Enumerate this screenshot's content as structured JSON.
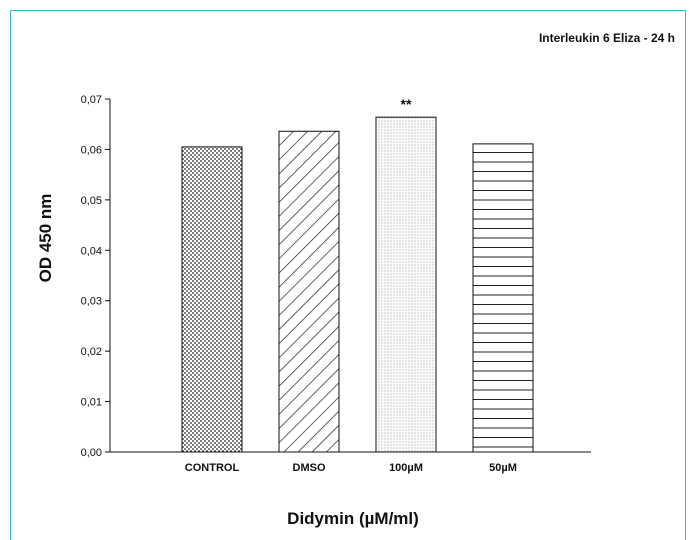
{
  "chart_data": {
    "type": "bar",
    "title": "Interleukin 6 Eliza - 24 h",
    "xlabel": "Didymin (µM/ml)",
    "ylabel": "OD 450 nm",
    "categories": [
      "CONTROL",
      "DMSO",
      "100µM",
      "50µM"
    ],
    "values": [
      0.0605,
      0.0636,
      0.0664,
      0.0611
    ],
    "patterns": [
      "dots-dense",
      "diagonal-wide",
      "dots-fine",
      "horizontal-lines"
    ],
    "annotations": [
      {
        "category": "100µM",
        "text": "**"
      }
    ],
    "ylim": [
      0,
      0.07
    ],
    "yticks": [
      "0,00",
      "0,01",
      "0,02",
      "0,03",
      "0,04",
      "0,05",
      "0,06",
      "0,07"
    ],
    "ytick_values": [
      0,
      0.01,
      0.02,
      0.03,
      0.04,
      0.05,
      0.06,
      0.07
    ],
    "grid": false,
    "legend": "none"
  },
  "colors": {
    "frame_border": "#3fb6d3",
    "bar_fill": "#ffffff",
    "bar_stroke": "#111111"
  }
}
